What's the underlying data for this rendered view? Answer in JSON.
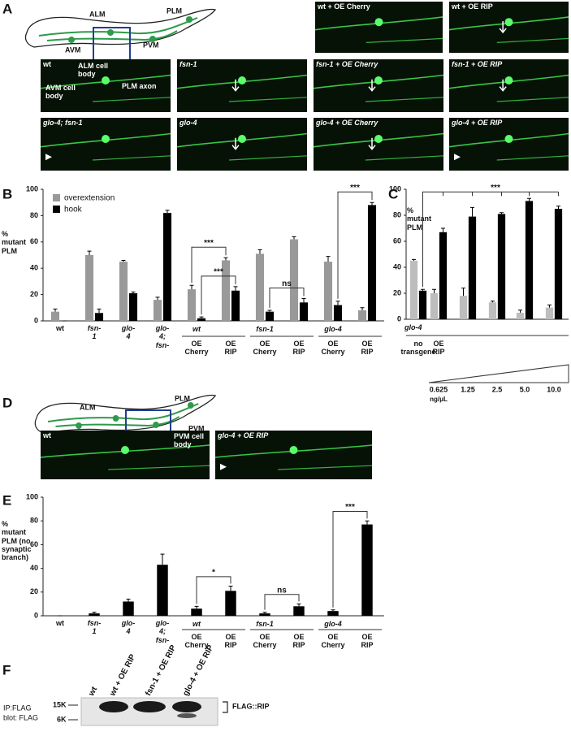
{
  "panel_a": {
    "letter": "A",
    "diagram_labels": [
      "ALM",
      "PLM",
      "AVM",
      "PVM"
    ],
    "images": [
      {
        "label": "wt + OE Cherry"
      },
      {
        "label": "wt + OE RIP"
      },
      {
        "label": "wt",
        "annotations": [
          "ALM cell body",
          "AVM cell body",
          "PLM axon"
        ]
      },
      {
        "label": "fsn-1"
      },
      {
        "label": "fsn-1 + OE Cherry"
      },
      {
        "label": "fsn-1 + OE RIP"
      },
      {
        "label": "glo-4; fsn-1"
      },
      {
        "label": "glo-4"
      },
      {
        "label": "glo-4 + OE Cherry"
      },
      {
        "label": "glo-4 + OE RIP"
      }
    ]
  },
  "chart_data": [
    {
      "type": "bar",
      "panel": "B",
      "y_label": "% mutant PLM",
      "categories": [
        "wt",
        "fsn-1",
        "glo-4",
        "glo-4; fsn-1",
        "OE Cherry",
        "OE RIP",
        "OE Cherry",
        "OE RIP",
        "OE Cherry",
        "OE RIP"
      ],
      "group_labels": [
        "wt",
        "fsn-1",
        "glo-4"
      ],
      "ylim": [
        0,
        100
      ],
      "yticks": [
        0,
        20,
        40,
        60,
        80,
        100
      ],
      "legend": "top-left",
      "series": [
        {
          "name": "overextension",
          "color": "#999999",
          "values": [
            7,
            50,
            45,
            16,
            24,
            46,
            51,
            62,
            45,
            8
          ],
          "errors": [
            2,
            3,
            1,
            2,
            3,
            2,
            3,
            2,
            4,
            2
          ]
        },
        {
          "name": "hook",
          "color": "#000000",
          "values": [
            0,
            6,
            21,
            82,
            2,
            23,
            7,
            14,
            12,
            88
          ],
          "errors": [
            0,
            3,
            1,
            2,
            1,
            3,
            1,
            3,
            3,
            2
          ]
        }
      ],
      "annotations": [
        "***",
        "***",
        "ns",
        "***"
      ]
    },
    {
      "type": "bar",
      "panel": "C",
      "y_label": "% mutant PLM",
      "categories": [
        "no transgene",
        "0.625",
        "1.25",
        "2.5",
        "5.0",
        "10.0"
      ],
      "group_label": "glo-4",
      "transgene_label": "OE RIP",
      "unit_label": "ng/μL",
      "ylim": [
        0,
        100
      ],
      "yticks": [
        0,
        20,
        40,
        60,
        80,
        100
      ],
      "series": [
        {
          "color": "#bdbdbd",
          "values": [
            45,
            20,
            18,
            13,
            5,
            9
          ],
          "errors": [
            1,
            3,
            6,
            1,
            2,
            2
          ]
        },
        {
          "color": "#000000",
          "values": [
            22,
            67,
            79,
            81,
            91,
            85
          ],
          "errors": [
            1,
            3,
            7,
            1,
            2,
            2
          ]
        }
      ],
      "annotations": [
        "***"
      ]
    },
    {
      "type": "bar",
      "panel": "E",
      "y_label": "% mutant PLM (no synaptic branch)",
      "categories": [
        "wt",
        "fsn-1",
        "glo-4",
        "glo-4; fsn-1",
        "OE Cherry",
        "OE RIP",
        "OE Cherry",
        "OE RIP",
        "OE Cherry",
        "OE RIP"
      ],
      "group_labels": [
        "wt",
        "fsn-1",
        "glo-4"
      ],
      "ylim": [
        0,
        100
      ],
      "yticks": [
        0,
        20,
        40,
        60,
        80,
        100
      ],
      "series": [
        {
          "color": "#000000",
          "values": [
            0,
            2,
            12,
            43,
            6,
            21,
            2,
            8,
            4,
            77
          ],
          "errors": [
            0,
            1,
            2,
            9,
            2,
            4,
            1,
            2,
            1,
            3
          ]
        }
      ],
      "annotations": [
        "*",
        "ns",
        "***"
      ]
    }
  ],
  "panel_d": {
    "letter": "D",
    "diagram_labels": [
      "ALM",
      "PLM",
      "AVM",
      "PVM"
    ],
    "images": [
      {
        "label": "wt",
        "annotations": [
          "PVM cell body"
        ]
      },
      {
        "label": "glo-4 + OE RIP"
      }
    ]
  },
  "panel_f": {
    "letter": "F",
    "lanes": [
      "wt",
      "wt + OE RIP",
      "fsn-1 + OE RIP",
      "glo-4 + OE RIP"
    ],
    "markers": [
      "15K",
      "6K"
    ],
    "row_labels": [
      "IP:FLAG",
      "blot: FLAG"
    ],
    "band_label": "FLAG::RIP"
  }
}
